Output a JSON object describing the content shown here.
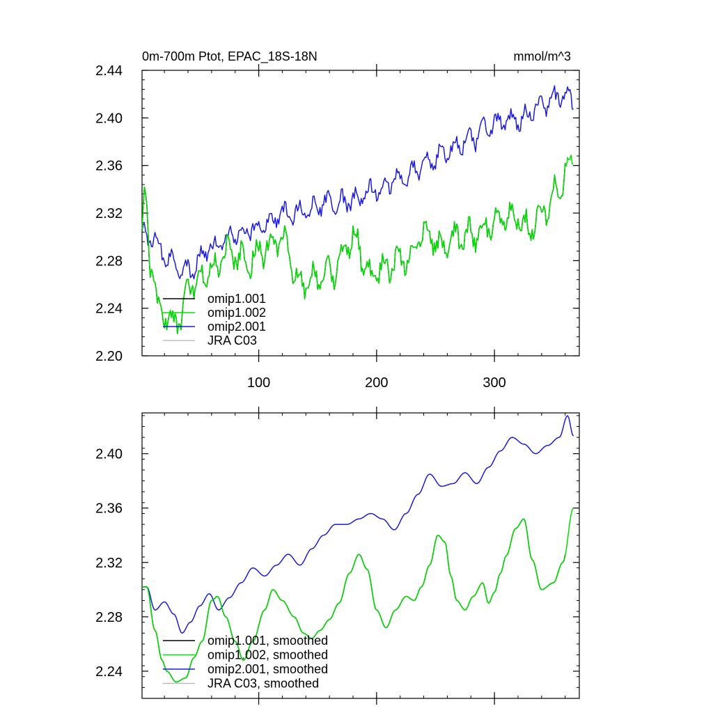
{
  "chart_data": [
    {
      "type": "line",
      "title": "0m-700m Ptot, EPAC_18S-18N",
      "units": "mmol/m^3",
      "xlabel": "",
      "ylabel": "",
      "xlim": [
        1,
        372
      ],
      "ylim": [
        2.2,
        2.44
      ],
      "x_ticks": [
        100,
        200,
        300
      ],
      "x_tick_labels": [
        "100",
        "200",
        "300"
      ],
      "y_ticks": [
        2.2,
        2.24,
        2.28,
        2.32,
        2.36,
        2.4,
        2.44
      ],
      "y_tick_labels": [
        "2.20",
        "2.24",
        "2.28",
        "2.32",
        "2.36",
        "2.40",
        "2.44"
      ],
      "legend": [
        "omip1.001",
        "omip1.002",
        "omip2.001",
        "JRA C03"
      ],
      "legend_placement": "bottom-left",
      "series": [
        {
          "name": "omip1.001",
          "color": "#000000",
          "n": 360,
          "anchors": [
            [
              1,
              2.305
            ],
            [
              4,
              2.338
            ],
            [
              8,
              2.28
            ],
            [
              15,
              2.24
            ],
            [
              30,
              2.228
            ],
            [
              45,
              2.262
            ],
            [
              60,
              2.272
            ],
            [
              75,
              2.288
            ],
            [
              90,
              2.28
            ],
            [
              105,
              2.29
            ],
            [
              120,
              2.296
            ],
            [
              135,
              2.262
            ],
            [
              150,
              2.264
            ],
            [
              165,
              2.272
            ],
            [
              180,
              2.3
            ],
            [
              195,
              2.266
            ],
            [
              210,
              2.276
            ],
            [
              225,
              2.282
            ],
            [
              240,
              2.305
            ],
            [
              255,
              2.292
            ],
            [
              270,
              2.3
            ],
            [
              285,
              2.302
            ],
            [
              300,
              2.312
            ],
            [
              315,
              2.32
            ],
            [
              330,
              2.308
            ],
            [
              345,
              2.325
            ],
            [
              355,
              2.345
            ],
            [
              366,
              2.362
            ]
          ],
          "amp": 0.017
        },
        {
          "name": "omip1.002",
          "color": "#00e000",
          "n": 367,
          "anchors": [
            [
              1,
              2.305
            ],
            [
              4,
              2.338
            ],
            [
              8,
              2.28
            ],
            [
              15,
              2.24
            ],
            [
              30,
              2.228
            ],
            [
              45,
              2.262
            ],
            [
              60,
              2.272
            ],
            [
              75,
              2.288
            ],
            [
              90,
              2.28
            ],
            [
              105,
              2.29
            ],
            [
              120,
              2.296
            ],
            [
              135,
              2.262
            ],
            [
              150,
              2.264
            ],
            [
              165,
              2.272
            ],
            [
              180,
              2.3
            ],
            [
              195,
              2.266
            ],
            [
              210,
              2.276
            ],
            [
              225,
              2.282
            ],
            [
              240,
              2.305
            ],
            [
              255,
              2.292
            ],
            [
              270,
              2.3
            ],
            [
              285,
              2.302
            ],
            [
              300,
              2.312
            ],
            [
              315,
              2.32
            ],
            [
              330,
              2.308
            ],
            [
              345,
              2.325
            ],
            [
              355,
              2.345
            ],
            [
              367,
              2.362
            ]
          ],
          "amp": 0.017
        },
        {
          "name": "omip2.001",
          "color": "#1a1adc",
          "n": 367,
          "anchors": [
            [
              1,
              2.305
            ],
            [
              10,
              2.297
            ],
            [
              25,
              2.28
            ],
            [
              40,
              2.272
            ],
            [
              60,
              2.29
            ],
            [
              80,
              2.302
            ],
            [
              100,
              2.308
            ],
            [
              120,
              2.318
            ],
            [
              140,
              2.322
            ],
            [
              160,
              2.328
            ],
            [
              180,
              2.33
            ],
            [
              200,
              2.34
            ],
            [
              220,
              2.35
            ],
            [
              240,
              2.36
            ],
            [
              260,
              2.372
            ],
            [
              280,
              2.382
            ],
            [
              300,
              2.395
            ],
            [
              320,
              2.398
            ],
            [
              340,
              2.41
            ],
            [
              360,
              2.42
            ],
            [
              367,
              2.412
            ]
          ],
          "amp": 0.012
        },
        {
          "name": "JRA C03",
          "color": "#bdbdbd",
          "values": []
        }
      ]
    },
    {
      "type": "line",
      "title": "",
      "units": "",
      "xlabel": "",
      "ylabel": "",
      "xlim": [
        1,
        372
      ],
      "ylim": [
        2.22,
        2.43
      ],
      "x_ticks": [
        100,
        200,
        300
      ],
      "x_tick_labels": [],
      "y_ticks": [
        2.24,
        2.28,
        2.32,
        2.36,
        2.4
      ],
      "y_tick_labels": [
        "2.24",
        "2.28",
        "2.32",
        "2.36",
        "2.40"
      ],
      "legend": [
        "omip1.001, smoothed",
        "omip1.002, smoothed",
        "omip2.001, smoothed",
        "JRA C03, smoothed"
      ],
      "legend_placement": "bottom-left",
      "series": [
        {
          "name": "omip1.001, smoothed",
          "color": "#000000",
          "n": 360,
          "anchors": [
            [
              5,
              2.302
            ],
            [
              12,
              2.27
            ],
            [
              18,
              2.248
            ],
            [
              22,
              2.24
            ],
            [
              30,
              2.232
            ],
            [
              38,
              2.235
            ],
            [
              45,
              2.25
            ],
            [
              52,
              2.262
            ],
            [
              60,
              2.292
            ],
            [
              65,
              2.295
            ],
            [
              72,
              2.28
            ],
            [
              80,
              2.262
            ],
            [
              87,
              2.248
            ],
            [
              95,
              2.262
            ],
            [
              105,
              2.285
            ],
            [
              112,
              2.3
            ],
            [
              120,
              2.292
            ],
            [
              130,
              2.28
            ],
            [
              138,
              2.268
            ],
            [
              145,
              2.264
            ],
            [
              152,
              2.27
            ],
            [
              160,
              2.278
            ],
            [
              168,
              2.29
            ],
            [
              177,
              2.312
            ],
            [
              185,
              2.326
            ],
            [
              192,
              2.315
            ],
            [
              200,
              2.285
            ],
            [
              208,
              2.272
            ],
            [
              216,
              2.285
            ],
            [
              225,
              2.295
            ],
            [
              232,
              2.292
            ],
            [
              238,
              2.302
            ],
            [
              245,
              2.318
            ],
            [
              252,
              2.34
            ],
            [
              258,
              2.335
            ],
            [
              263,
              2.31
            ],
            [
              268,
              2.292
            ],
            [
              275,
              2.285
            ],
            [
              282,
              2.295
            ],
            [
              290,
              2.305
            ],
            [
              295,
              2.29
            ],
            [
              300,
              2.298
            ],
            [
              305,
              2.312
            ],
            [
              310,
              2.325
            ],
            [
              318,
              2.345
            ],
            [
              325,
              2.352
            ],
            [
              332,
              2.322
            ],
            [
              340,
              2.3
            ],
            [
              350,
              2.305
            ],
            [
              358,
              2.32
            ],
            [
              366,
              2.358
            ]
          ]
        },
        {
          "name": "omip1.002, smoothed",
          "color": "#00e000",
          "n": 367,
          "anchors": [
            [
              5,
              2.302
            ],
            [
              12,
              2.27
            ],
            [
              18,
              2.248
            ],
            [
              22,
              2.24
            ],
            [
              30,
              2.232
            ],
            [
              38,
              2.235
            ],
            [
              45,
              2.25
            ],
            [
              52,
              2.262
            ],
            [
              60,
              2.292
            ],
            [
              65,
              2.295
            ],
            [
              72,
              2.28
            ],
            [
              80,
              2.262
            ],
            [
              87,
              2.248
            ],
            [
              95,
              2.262
            ],
            [
              105,
              2.285
            ],
            [
              112,
              2.3
            ],
            [
              120,
              2.292
            ],
            [
              130,
              2.28
            ],
            [
              138,
              2.268
            ],
            [
              145,
              2.264
            ],
            [
              152,
              2.27
            ],
            [
              160,
              2.278
            ],
            [
              168,
              2.29
            ],
            [
              177,
              2.312
            ],
            [
              185,
              2.326
            ],
            [
              192,
              2.315
            ],
            [
              200,
              2.285
            ],
            [
              208,
              2.272
            ],
            [
              216,
              2.285
            ],
            [
              225,
              2.295
            ],
            [
              232,
              2.292
            ],
            [
              238,
              2.302
            ],
            [
              245,
              2.318
            ],
            [
              252,
              2.34
            ],
            [
              258,
              2.335
            ],
            [
              263,
              2.31
            ],
            [
              268,
              2.292
            ],
            [
              275,
              2.285
            ],
            [
              282,
              2.295
            ],
            [
              290,
              2.305
            ],
            [
              295,
              2.29
            ],
            [
              300,
              2.298
            ],
            [
              305,
              2.312
            ],
            [
              310,
              2.325
            ],
            [
              318,
              2.345
            ],
            [
              325,
              2.352
            ],
            [
              332,
              2.322
            ],
            [
              340,
              2.3
            ],
            [
              350,
              2.305
            ],
            [
              358,
              2.32
            ],
            [
              367,
              2.36
            ]
          ]
        },
        {
          "name": "omip2.001, smoothed",
          "color": "#1a1adc",
          "n": 367,
          "anchors": [
            [
              5,
              2.302
            ],
            [
              12,
              2.285
            ],
            [
              20,
              2.291
            ],
            [
              28,
              2.282
            ],
            [
              35,
              2.268
            ],
            [
              42,
              2.276
            ],
            [
              50,
              2.288
            ],
            [
              58,
              2.297
            ],
            [
              66,
              2.285
            ],
            [
              75,
              2.294
            ],
            [
              85,
              2.305
            ],
            [
              95,
              2.316
            ],
            [
              105,
              2.31
            ],
            [
              115,
              2.318
            ],
            [
              125,
              2.326
            ],
            [
              135,
              2.318
            ],
            [
              145,
              2.33
            ],
            [
              155,
              2.34
            ],
            [
              165,
              2.348
            ],
            [
              175,
              2.348
            ],
            [
              185,
              2.352
            ],
            [
              195,
              2.356
            ],
            [
              205,
              2.352
            ],
            [
              215,
              2.344
            ],
            [
              225,
              2.356
            ],
            [
              235,
              2.37
            ],
            [
              245,
              2.385
            ],
            [
              255,
              2.376
            ],
            [
              265,
              2.378
            ],
            [
              275,
              2.386
            ],
            [
              285,
              2.378
            ],
            [
              295,
              2.39
            ],
            [
              305,
              2.402
            ],
            [
              315,
              2.412
            ],
            [
              325,
              2.407
            ],
            [
              335,
              2.4
            ],
            [
              345,
              2.406
            ],
            [
              355,
              2.412
            ],
            [
              362,
              2.428
            ],
            [
              367,
              2.413
            ]
          ]
        },
        {
          "name": "JRA C03, smoothed",
          "color": "#bdbdbd",
          "values": []
        }
      ]
    }
  ]
}
